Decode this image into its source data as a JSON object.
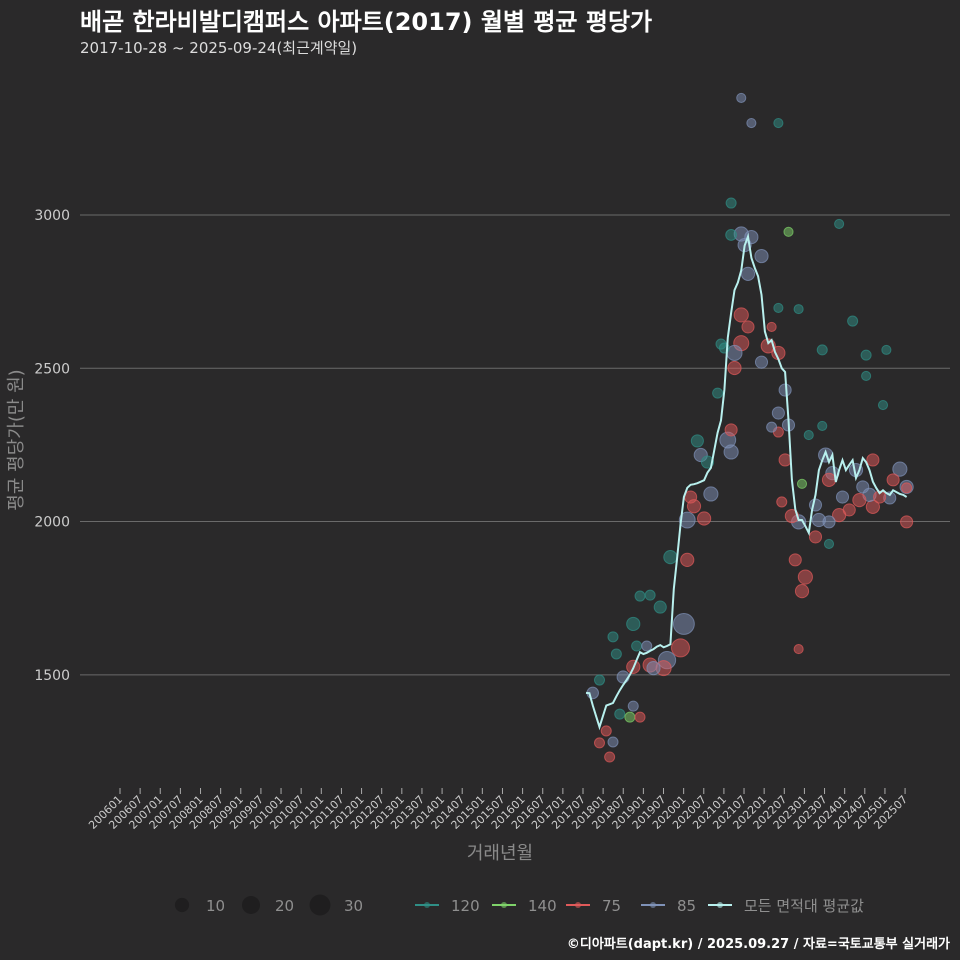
{
  "chart_data": {
    "type": "scatter",
    "title": "배곧 한라비발디캠퍼스 아파트(2017) 월별 평균 평당가",
    "subtitle": "2017-10-28 ~ 2025-09-24(최근계약일)",
    "xlabel": "거래년월",
    "ylabel": "평균 평당가(만 원)",
    "ylim": [
      1150,
      3400
    ],
    "y_ticks": [
      1500,
      2000,
      2500,
      3000
    ],
    "y_tick_labels": [
      "1500",
      "2000",
      "2500",
      "3000"
    ],
    "x_tick_labels": [
      "200601",
      "200607",
      "200701",
      "200707",
      "200801",
      "200807",
      "200901",
      "200907",
      "201001",
      "201007",
      "201101",
      "201107",
      "201201",
      "201207",
      "201301",
      "201307",
      "201401",
      "201407",
      "201501",
      "201507",
      "201601",
      "201607",
      "201701",
      "201707",
      "201801",
      "201807",
      "201901",
      "201907",
      "202001",
      "202007",
      "202101",
      "202107",
      "202201",
      "202207",
      "202301",
      "202307",
      "202401",
      "202407",
      "202501",
      "202507"
    ],
    "grid": true,
    "series_colors": {
      "120": "#2f8f86",
      "140": "#7fd36a",
      "75": "#e05a5a",
      "85": "#7f92b8",
      "avg": "#b8f0ee"
    },
    "average_line": {
      "name": "모든 면적대 평균값",
      "start_month": "2017-10",
      "values": [
        1441,
        1440,
        1400,
        1365,
        1330,
        1365,
        1400,
        1404,
        1408,
        1430,
        1450,
        1467,
        1483,
        1500,
        1522,
        1548,
        1574,
        1568,
        1572,
        1578,
        1584,
        1592,
        1597,
        1590,
        1594,
        1600,
        1780,
        1880,
        1990,
        2080,
        2110,
        2120,
        2122,
        2125,
        2130,
        2135,
        2160,
        2175,
        2233,
        2290,
        2330,
        2430,
        2600,
        2680,
        2755,
        2780,
        2820,
        2900,
        2930,
        2860,
        2827,
        2800,
        2740,
        2620,
        2582,
        2592,
        2553,
        2530,
        2500,
        2488,
        2331,
        2136,
        2040,
        2005,
        2005,
        1985,
        1963,
        2038,
        2087,
        2168,
        2200,
        2227,
        2194,
        2217,
        2129,
        2168,
        2200,
        2168,
        2185,
        2200,
        2142,
        2168,
        2207,
        2194,
        2168,
        2130,
        2109,
        2093,
        2102,
        2093,
        2087,
        2102,
        2096,
        2090,
        2087,
        2080
      ]
    },
    "points_note": "each point: [month index from 2017-10, avg price, area type, deal count]",
    "points": [
      [
        2,
        1441,
        "85",
        5
      ],
      [
        4,
        1278,
        "75",
        3
      ],
      [
        7,
        1232,
        "75",
        3
      ],
      [
        8,
        1281,
        "85",
        3
      ],
      [
        6,
        1317,
        "75",
        3
      ],
      [
        4,
        1483,
        "120",
        3
      ],
      [
        10,
        1372,
        "120",
        3
      ],
      [
        13,
        1362,
        "140",
        3
      ],
      [
        16,
        1362,
        "75",
        3
      ],
      [
        14,
        1398,
        "85",
        3
      ],
      [
        11,
        1493,
        "85",
        6
      ],
      [
        8,
        1624,
        "120",
        3
      ],
      [
        9,
        1568,
        "120",
        3
      ],
      [
        14,
        1526,
        "75",
        8
      ],
      [
        19,
        1532,
        "75",
        10
      ],
      [
        20,
        1522,
        "85",
        8
      ],
      [
        24,
        1548,
        "85",
        18
      ],
      [
        23,
        1522,
        "75",
        12
      ],
      [
        28,
        1588,
        "75",
        20
      ],
      [
        29,
        1666,
        "85",
        30
      ],
      [
        30,
        1875,
        "75",
        8
      ],
      [
        25,
        1884,
        "120",
        8
      ],
      [
        14,
        1666,
        "120",
        8
      ],
      [
        22,
        1721,
        "120",
        6
      ],
      [
        16,
        1757,
        "120",
        3
      ],
      [
        19,
        1760,
        "120",
        3
      ],
      [
        15,
        1594,
        "120",
        3
      ],
      [
        18,
        1594,
        "85",
        3
      ],
      [
        43,
        3039,
        "120",
        3
      ],
      [
        46,
        3382,
        "85",
        2
      ],
      [
        49,
        3300,
        "85",
        2
      ],
      [
        57,
        3300,
        "120",
        2
      ],
      [
        46,
        2938,
        "85",
        10
      ],
      [
        49,
        2928,
        "85",
        8
      ],
      [
        47,
        2902,
        "85",
        8
      ],
      [
        52,
        2866,
        "85",
        8
      ],
      [
        43,
        2935,
        "120",
        4
      ],
      [
        60,
        2945,
        "140",
        2
      ],
      [
        48,
        2808,
        "85",
        8
      ],
      [
        46,
        2674,
        "75",
        10
      ],
      [
        48,
        2635,
        "75",
        6
      ],
      [
        57,
        2697,
        "120",
        2
      ],
      [
        63,
        2693,
        "120",
        2
      ],
      [
        55,
        2635,
        "75",
        2
      ],
      [
        46,
        2582,
        "75",
        12
      ],
      [
        44,
        2550,
        "85",
        12
      ],
      [
        44,
        2501,
        "75",
        8
      ],
      [
        54,
        2573,
        "75",
        10
      ],
      [
        57,
        2550,
        "75",
        8
      ],
      [
        52,
        2520,
        "85",
        6
      ],
      [
        40,
        2579,
        "120",
        3
      ],
      [
        41,
        2566,
        "120",
        3
      ],
      [
        59,
        2429,
        "85",
        6
      ],
      [
        57,
        2354,
        "85",
        6
      ],
      [
        60,
        2315,
        "85",
        6
      ],
      [
        57,
        2292,
        "75",
        3
      ],
      [
        55,
        2308,
        "85",
        3
      ],
      [
        39,
        2419,
        "120",
        3
      ],
      [
        42,
        2266,
        "85",
        14
      ],
      [
        43,
        2227,
        "85",
        10
      ],
      [
        43,
        2299,
        "75",
        6
      ],
      [
        33,
        2263,
        "120",
        6
      ],
      [
        34,
        2217,
        "85",
        8
      ],
      [
        36,
        2194,
        "120",
        6
      ],
      [
        59,
        2201,
        "75",
        6
      ],
      [
        58,
        2064,
        "75",
        3
      ],
      [
        61,
        2018,
        "75",
        8
      ],
      [
        32,
        2050,
        "75",
        8
      ],
      [
        35,
        2010,
        "75",
        8
      ],
      [
        37,
        2090,
        "85",
        10
      ],
      [
        31,
        2080,
        "75",
        6
      ],
      [
        30,
        2005,
        "85",
        14
      ],
      [
        71,
        2217,
        "85",
        10
      ],
      [
        73,
        2158,
        "85",
        8
      ],
      [
        72,
        2136,
        "75",
        8
      ],
      [
        66,
        2282,
        "120",
        2
      ],
      [
        70,
        2312,
        "120",
        2
      ],
      [
        64,
        2123,
        "140",
        2
      ],
      [
        70,
        2560,
        "120",
        3
      ],
      [
        75,
        2971,
        "120",
        2
      ],
      [
        79,
        2654,
        "120",
        3
      ],
      [
        83,
        2475,
        "120",
        2
      ],
      [
        83,
        2543,
        "120",
        3
      ],
      [
        89,
        2560,
        "120",
        2
      ],
      [
        88,
        2380,
        "120",
        2
      ],
      [
        85,
        2201,
        "75",
        6
      ],
      [
        93,
        2171,
        "85",
        10
      ],
      [
        95,
        2113,
        "85",
        8
      ],
      [
        95,
        2110,
        "75",
        3
      ],
      [
        95,
        1999,
        "75",
        6
      ],
      [
        85,
        2048,
        "75",
        8
      ],
      [
        84,
        2087,
        "85",
        8
      ],
      [
        76,
        2080,
        "85",
        6
      ],
      [
        81,
        2070,
        "75",
        8
      ],
      [
        75,
        2021,
        "75",
        8
      ],
      [
        78,
        2038,
        "75",
        6
      ],
      [
        69,
        2005,
        "85",
        8
      ],
      [
        63,
        1999,
        "85",
        10
      ],
      [
        68,
        1950,
        "75",
        6
      ],
      [
        72,
        1999,
        "85",
        6
      ],
      [
        62,
        1875,
        "75",
        6
      ],
      [
        65,
        1819,
        "75",
        10
      ],
      [
        64,
        1773,
        "75",
        8
      ],
      [
        63,
        1584,
        "75",
        2
      ],
      [
        72,
        1927,
        "120",
        2
      ],
      [
        90,
        2077,
        "85",
        6
      ],
      [
        87,
        2080,
        "75",
        6
      ],
      [
        80,
        2168,
        "85",
        8
      ],
      [
        91,
        2136,
        "75",
        6
      ],
      [
        82,
        2113,
        "85",
        6
      ],
      [
        68,
        2054,
        "85",
        6
      ]
    ],
    "legend": {
      "placement": "bottom",
      "sizes": [
        10,
        20,
        30
      ],
      "size_labels": [
        "10",
        "20",
        "30"
      ],
      "types": [
        {
          "key": "120",
          "label": "120"
        },
        {
          "key": "140",
          "label": "140"
        },
        {
          "key": "75",
          "label": "75"
        },
        {
          "key": "85",
          "label": "85"
        },
        {
          "key": "avg",
          "label": "모든 면적대 평균값"
        }
      ]
    },
    "caption": "©디아파트(dapt.kr) / 2025.09.27 / 자료=국토교통부 실거래가"
  }
}
